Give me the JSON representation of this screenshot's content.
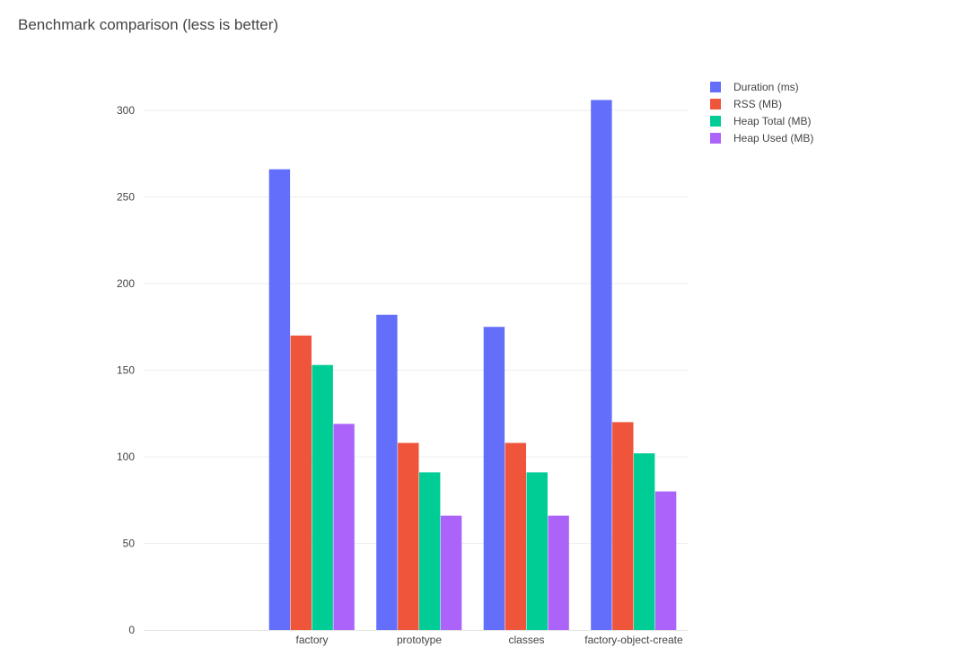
{
  "chart_data": {
    "type": "bar",
    "title": "Benchmark comparison (less is better)",
    "xlabel": "",
    "ylabel": "",
    "categories": [
      "factory",
      "prototype",
      "classes",
      "factory-object-create"
    ],
    "series": [
      {
        "name": "Duration (ms)",
        "color": "#636efa",
        "values": [
          266,
          182,
          175,
          306
        ]
      },
      {
        "name": "RSS (MB)",
        "color": "#ef553b",
        "values": [
          170,
          108,
          108,
          120
        ]
      },
      {
        "name": "Heap Total (MB)",
        "color": "#00cc96",
        "values": [
          153,
          91,
          91,
          102
        ]
      },
      {
        "name": "Heap Used (MB)",
        "color": "#ab63fa",
        "values": [
          119,
          66,
          66,
          80
        ]
      }
    ],
    "ylim": [
      0,
      314
    ],
    "yticks": [
      0,
      50,
      100,
      150,
      200,
      250,
      300
    ],
    "grid": true,
    "legend_position": "top-right"
  }
}
